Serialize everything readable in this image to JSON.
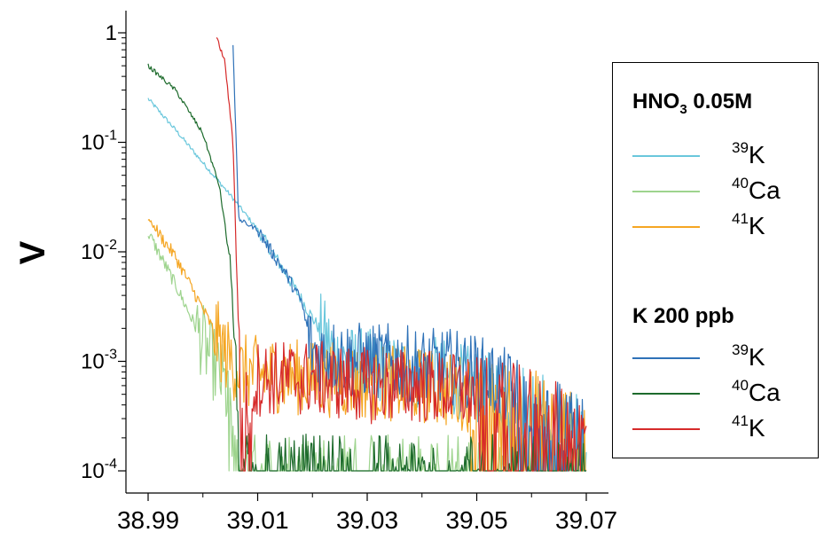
{
  "chart_data": {
    "type": "line",
    "ylabel": "V",
    "yscale": "log",
    "xlim": [
      38.99,
      39.07
    ],
    "ylim": [
      0.0001,
      1
    ],
    "xticks": [
      "38.99",
      "39.01",
      "39.03",
      "39.05",
      "39.07"
    ],
    "yticks": [
      {
        "base": "1",
        "exp": ""
      },
      {
        "base": "10",
        "exp": "-1"
      },
      {
        "base": "10",
        "exp": "-2"
      },
      {
        "base": "10",
        "exp": "-3"
      },
      {
        "base": "10",
        "exp": "-4"
      }
    ],
    "legend_position": "right",
    "legend_groups": [
      {
        "title_main": "HNO",
        "title_sub": "3",
        "title_rest": " 0.05M",
        "entries": [
          {
            "sup": "39",
            "label": "K",
            "color": "#6ac7dc"
          },
          {
            "sup": "40",
            "label": "Ca",
            "color": "#9ed48e"
          },
          {
            "sup": "41",
            "label": "K",
            "color": "#f5a623"
          }
        ]
      },
      {
        "title_main": "K 200 ppb",
        "title_sub": "",
        "title_rest": "",
        "entries": [
          {
            "sup": "39",
            "label": "K",
            "color": "#2f72b8"
          },
          {
            "sup": "40",
            "label": "Ca",
            "color": "#1d6b2c"
          },
          {
            "sup": "41",
            "label": "K",
            "color": "#d62a2a"
          }
        ]
      }
    ],
    "series": [
      {
        "id": "hno3-39k",
        "color": "#6ac7dc",
        "x": [
          38.99,
          38.995,
          39.0,
          39.005,
          39.01,
          39.015,
          39.02,
          39.025,
          39.03,
          39.035,
          39.04,
          39.045,
          39.05,
          39.055,
          39.06,
          39.065,
          39.07
        ],
        "y": [
          0.25,
          0.13,
          0.065,
          0.033,
          0.016,
          0.0065,
          0.0025,
          0.001,
          0.0009,
          0.0008,
          0.0008,
          0.0007,
          0.0006,
          0.0005,
          0.0004,
          0.0003,
          0.0002
        ]
      },
      {
        "id": "hno3-40ca",
        "color": "#9ed48e",
        "x": [
          38.99,
          38.995,
          39.0,
          39.004,
          39.0065,
          39.02,
          39.04,
          39.06,
          39.07
        ],
        "y": [
          0.015,
          0.005,
          0.0015,
          0.0006,
          0.0001,
          0.0001,
          0.0001,
          0.0001,
          0.0001
        ]
      },
      {
        "id": "hno3-41k",
        "color": "#f5a623",
        "x": [
          38.99,
          38.995,
          39.0,
          39.004,
          39.007,
          39.02,
          39.04,
          39.06,
          39.07
        ],
        "y": [
          0.02,
          0.009,
          0.003,
          0.0012,
          0.0008,
          0.0007,
          0.0006,
          0.0004,
          0.0002
        ]
      },
      {
        "id": "k200-39k",
        "color": "#2f72b8",
        "x": [
          39.0055,
          39.0065,
          39.008,
          39.01,
          39.012,
          39.015,
          39.018,
          39.02,
          39.025,
          39.03,
          39.035,
          39.04,
          39.045,
          39.05,
          39.055,
          39.06,
          39.065,
          39.07
        ],
        "y": [
          0.8,
          0.02,
          0.018,
          0.016,
          0.011,
          0.0065,
          0.0035,
          0.0012,
          0.0011,
          0.001,
          0.001,
          0.0009,
          0.0009,
          0.0008,
          0.0006,
          0.0004,
          0.0003,
          0.0002
        ]
      },
      {
        "id": "k200-40ca",
        "color": "#1d6b2c",
        "x": [
          38.99,
          38.995,
          39.0,
          39.003,
          39.005,
          39.006,
          39.0065,
          39.02,
          39.04,
          39.06,
          39.07
        ],
        "y": [
          0.5,
          0.3,
          0.12,
          0.04,
          0.008,
          0.001,
          0.0001,
          0.0001,
          0.0001,
          0.0001,
          0.0001
        ]
      },
      {
        "id": "k200-41k",
        "color": "#d62a2a",
        "x": [
          39.0025,
          39.004,
          39.0055,
          39.0065,
          39.007,
          39.01,
          39.02,
          39.03,
          39.04,
          39.05,
          39.06,
          39.07
        ],
        "y": [
          0.9,
          0.55,
          0.1,
          0.002,
          0.0003,
          0.0007,
          0.0007,
          0.0006,
          0.0006,
          0.0005,
          0.0004,
          0.0002
        ]
      }
    ]
  }
}
